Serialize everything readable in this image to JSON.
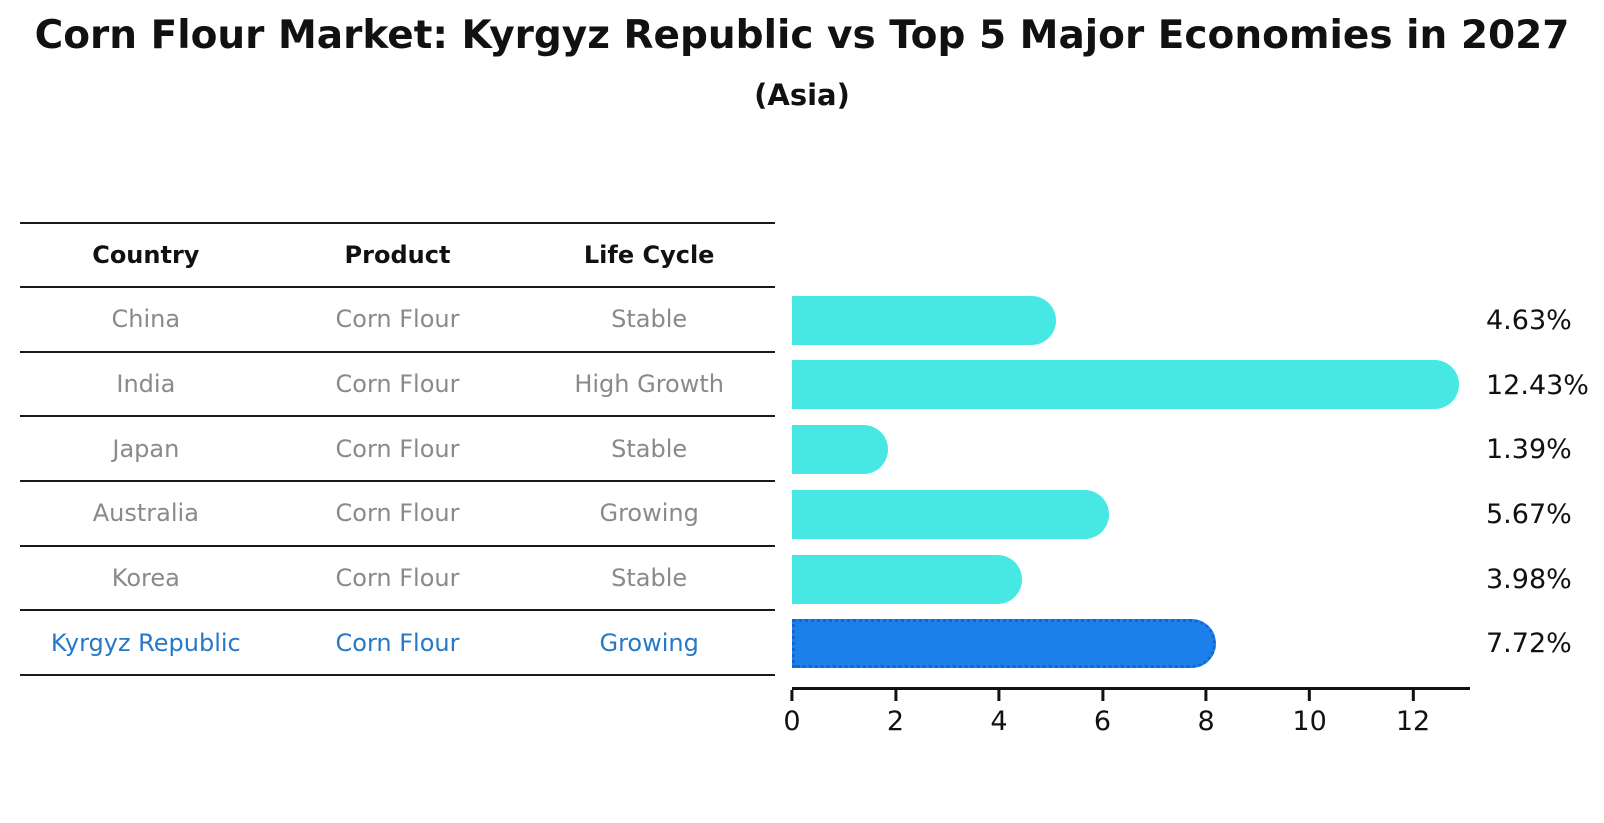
{
  "title": "Corn Flour Market: Kyrgyz Republic vs Top 5 Major Economies in 2027",
  "subtitle": "(Asia)",
  "table": {
    "headers": [
      "Country",
      "Product",
      "Life Cycle"
    ]
  },
  "rows": [
    {
      "country": "China",
      "product": "Corn Flour",
      "life_cycle": "Stable",
      "value_label": "4.63%",
      "highlight": false
    },
    {
      "country": "India",
      "product": "Corn Flour",
      "life_cycle": "High Growth",
      "value_label": "12.43%",
      "highlight": false
    },
    {
      "country": "Japan",
      "product": "Corn Flour",
      "life_cycle": "Stable",
      "value_label": "1.39%",
      "highlight": false
    },
    {
      "country": "Australia",
      "product": "Corn Flour",
      "life_cycle": "Growing",
      "value_label": "5.67%",
      "highlight": false
    },
    {
      "country": "Korea",
      "product": "Corn Flour",
      "life_cycle": "Stable",
      "value_label": "3.98%",
      "highlight": false
    },
    {
      "country": "Kyrgyz Republic",
      "product": "Corn Flour",
      "life_cycle": "Growing",
      "value_label": "7.72%",
      "highlight": true
    }
  ],
  "chart_data": {
    "type": "bar",
    "orientation": "horizontal",
    "title": "Corn Flour Market: Kyrgyz Republic vs Top 5 Major Economies in 2027",
    "subtitle": "(Asia)",
    "categories": [
      "China",
      "India",
      "Japan",
      "Australia",
      "Korea",
      "Kyrgyz Republic"
    ],
    "values": [
      4.63,
      12.43,
      1.39,
      5.67,
      3.98,
      7.72
    ],
    "value_labels": [
      "4.63%",
      "12.43%",
      "1.39%",
      "5.67%",
      "3.98%",
      "7.72%"
    ],
    "xlim": [
      0,
      13.1
    ],
    "xticks": [
      0,
      2,
      4,
      6,
      8,
      10,
      12
    ],
    "highlight_index": 5,
    "grid": false,
    "legend": null,
    "colors": {
      "bar": "#47E7E3",
      "highlight_bar": "#1C80EA",
      "highlight_edge": "#1565CC",
      "highlight_text": "#2878C8",
      "body_text": "#8a8a8a",
      "header_text": "#111111"
    }
  }
}
